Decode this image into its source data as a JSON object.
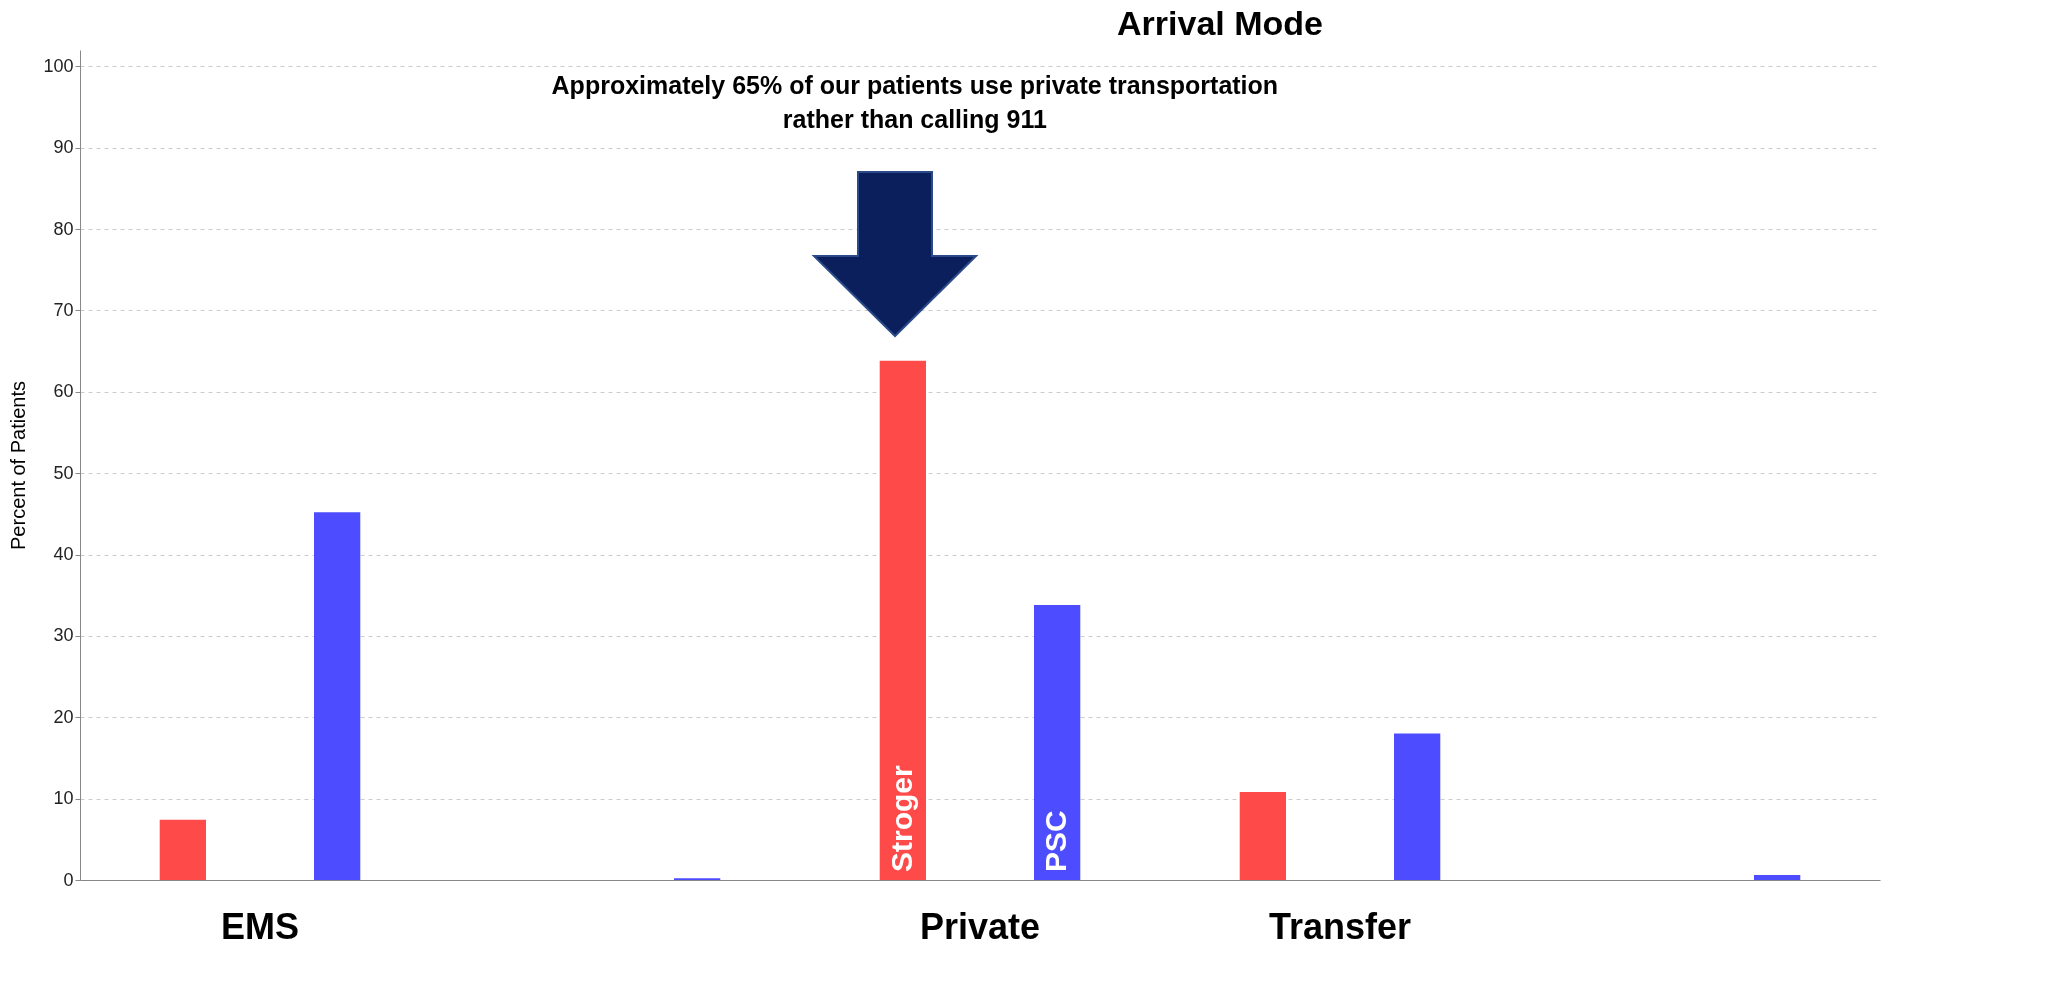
{
  "chart_data": {
    "type": "bar",
    "title": "Arrival Mode",
    "ylabel": "Percent of Patients",
    "categories": [
      "EMS",
      null,
      "Private",
      "Transfer",
      null
    ],
    "series": [
      {
        "name": "Stroger",
        "color": "#ff4a4a",
        "values": [
          7.4,
          0,
          63.8,
          10.8,
          0
        ]
      },
      {
        "name": "PSC",
        "color": "#4d4dff",
        "values": [
          45.2,
          0.2,
          33.8,
          18.0,
          0.6
        ]
      }
    ],
    "ylim": [
      0,
      102
    ],
    "yticks": [
      0,
      10,
      20,
      30,
      40,
      50,
      60,
      70,
      80,
      90,
      100
    ],
    "grid": "y",
    "legend": false,
    "annotations": [
      "Approximately 65% of our patients use private transportation rather than calling 911"
    ]
  }
}
